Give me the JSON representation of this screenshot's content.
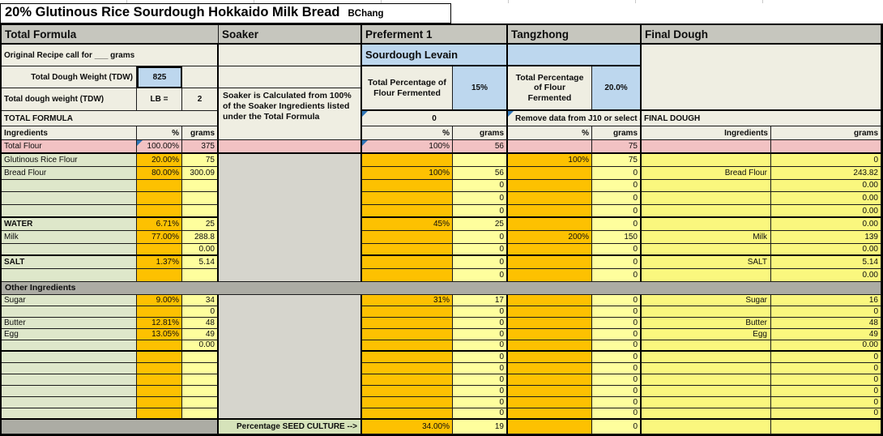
{
  "title": "20% Glutinous Rice Sourdough Hokkaido Milk Bread",
  "author": "BChang",
  "colors": {
    "orange_input": "#FDC101",
    "pale_yellow": "#FEFE9D",
    "final_dough_yellow": "#FAF77E",
    "pink_total_flour": "#F2C2C3",
    "label_green": "#DEE7CA",
    "seed_green": "#D6E3BA",
    "header_gray": "#C6C6BE",
    "band_gray": "#ACACA4",
    "soaker_gray": "#D6D5CD",
    "beige": "#EFEEE2",
    "blue_accent": "#BDD7EE",
    "comment_flag_blue": "#2E75B6"
  },
  "section_headers": [
    "Total Formula",
    "Soaker",
    "Preferment 1",
    "Tangzhong",
    "Final Dough"
  ],
  "total_formula": {
    "original_recipe_label": "Original Recipe call for ___ grams",
    "tdw_label": "Total Dough Weight (TDW)",
    "tdw_value": "825",
    "tdw_label2": "Total dough weight (TDW)",
    "lb_label": "LB  =",
    "lb_value": "2",
    "section_label": "TOTAL FORMULA",
    "col_headers": {
      "ingredients": "Ingredients",
      "pct": "%",
      "grams": "grams"
    }
  },
  "soaker": {
    "note": "Soaker is Calculated from 100% of the Soaker Ingredients listed under the Total Formula",
    "seed_culture_label": "Percentage SEED CULTURE  -->"
  },
  "preferment": {
    "subtitle": "Sourdough Levain",
    "pct_fermented_label": "Total Percentage of Flour Fermented",
    "pct_fermented_value": "15%",
    "flag_value": "0",
    "col_headers": {
      "pct": "%",
      "grams": "grams"
    },
    "seed_pct": "34.00%",
    "seed_grams": "19"
  },
  "tangzhong": {
    "pct_fermented_label": "Total Percentage of Flour Fermented",
    "pct_fermented_value": "20.0%",
    "note": "Remove data from J10 or select an",
    "col_headers": {
      "pct": "%",
      "grams": "grams"
    },
    "seed_pct": "",
    "seed_grams": "0"
  },
  "final_dough": {
    "section_label": "FINAL DOUGH",
    "col_headers": {
      "ingredients": "Ingredients",
      "grams": "grams"
    }
  },
  "total_flour_row": {
    "label": "Total Flour",
    "tf_pct": "100.00%",
    "tf_grams": "375",
    "pref_pct": "100%",
    "pref_grams": "56",
    "tang_pct": "",
    "tang_grams": "75",
    "fd_label": "",
    "fd_grams": ""
  },
  "other_ingredients_label": "Other Ingredients",
  "upper_rows": [
    {
      "label": "Glutinous Rice Flour",
      "bold": false,
      "tf_pct": "20.00%",
      "tf_grams": "75",
      "pref_pct": "",
      "pref_grams": "",
      "tang_pct": "100%",
      "tang_grams": "75",
      "fd_label": "",
      "fd_grams": "0"
    },
    {
      "label": "Bread Flour",
      "bold": false,
      "tf_pct": "80.00%",
      "tf_grams": "300.09",
      "pref_pct": "100%",
      "pref_grams": "56",
      "tang_pct": "",
      "tang_grams": "0",
      "fd_label": "Bread Flour",
      "fd_grams": "243.82"
    },
    {
      "label": "",
      "bold": false,
      "tf_pct": "",
      "tf_grams": "",
      "pref_pct": "",
      "pref_grams": "0",
      "tang_pct": "",
      "tang_grams": "0",
      "fd_label": "",
      "fd_grams": "0.00"
    },
    {
      "label": "",
      "bold": false,
      "tf_pct": "",
      "tf_grams": "",
      "pref_pct": "",
      "pref_grams": "0",
      "tang_pct": "",
      "tang_grams": "0",
      "fd_label": "",
      "fd_grams": "0.00"
    },
    {
      "label": "",
      "bold": false,
      "tf_pct": "",
      "tf_grams": "",
      "pref_pct": "",
      "pref_grams": "0",
      "tang_pct": "",
      "tang_grams": "0",
      "fd_label": "",
      "fd_grams": "0.00"
    },
    {
      "label": "WATER",
      "bold": true,
      "tf_pct": "6.71%",
      "tf_grams": "25",
      "pref_pct": "45%",
      "pref_grams": "25",
      "tang_pct": "",
      "tang_grams": "0",
      "fd_label": "",
      "fd_grams": "0.00"
    },
    {
      "label": "Milk",
      "bold": false,
      "tf_pct": "77.00%",
      "tf_grams": "288.8",
      "pref_pct": "",
      "pref_grams": "0",
      "tang_pct": "200%",
      "tang_grams": "150",
      "fd_label": "Milk",
      "fd_grams": "139"
    },
    {
      "label": "",
      "bold": false,
      "tf_pct": "",
      "tf_grams": "0.00",
      "pref_pct": "",
      "pref_grams": "0",
      "tang_pct": "",
      "tang_grams": "0",
      "fd_label": "",
      "fd_grams": "0.00"
    },
    {
      "label": "SALT",
      "bold": true,
      "tf_pct": "1.37%",
      "tf_grams": "5.14",
      "pref_pct": "",
      "pref_grams": "0",
      "tang_pct": "",
      "tang_grams": "0",
      "fd_label": "SALT",
      "fd_grams": "5.14"
    },
    {
      "label": "",
      "bold": false,
      "tf_pct": "",
      "tf_grams": "",
      "pref_pct": "",
      "pref_grams": "0",
      "tang_pct": "",
      "tang_grams": "0",
      "fd_label": "",
      "fd_grams": "0.00"
    }
  ],
  "lower_rows": [
    {
      "label": "Sugar",
      "bold": false,
      "tf_pct": "9.00%",
      "tf_grams": "34",
      "pref_pct": "31%",
      "pref_grams": "17",
      "tang_pct": "",
      "tang_grams": "0",
      "fd_label": "Sugar",
      "fd_grams": "16"
    },
    {
      "label": "",
      "bold": false,
      "tf_pct": "",
      "tf_grams": "0",
      "pref_pct": "",
      "pref_grams": "0",
      "tang_pct": "",
      "tang_grams": "0",
      "fd_label": "",
      "fd_grams": "0"
    },
    {
      "label": "Butter",
      "bold": false,
      "tf_pct": "12.81%",
      "tf_grams": "48",
      "pref_pct": "",
      "pref_grams": "0",
      "tang_pct": "",
      "tang_grams": "0",
      "fd_label": "Butter",
      "fd_grams": "48"
    },
    {
      "label": "Egg",
      "bold": false,
      "tf_pct": "13.05%",
      "tf_grams": "49",
      "pref_pct": "",
      "pref_grams": "0",
      "tang_pct": "",
      "tang_grams": "0",
      "fd_label": "Egg",
      "fd_grams": "49"
    },
    {
      "label": "",
      "bold": false,
      "tf_pct": "",
      "tf_grams": "0.00",
      "pref_pct": "",
      "pref_grams": "0",
      "tang_pct": "",
      "tang_grams": "0",
      "fd_label": "",
      "fd_grams": "0.00"
    },
    {
      "label": "",
      "bold": false,
      "tf_pct": "",
      "tf_grams": "",
      "pref_pct": "",
      "pref_grams": "0",
      "tang_pct": "",
      "tang_grams": "0",
      "fd_label": "",
      "fd_grams": "0"
    },
    {
      "label": "",
      "bold": false,
      "tf_pct": "",
      "tf_grams": "",
      "pref_pct": "",
      "pref_grams": "0",
      "tang_pct": "",
      "tang_grams": "0",
      "fd_label": "",
      "fd_grams": "0"
    },
    {
      "label": "",
      "bold": false,
      "tf_pct": "",
      "tf_grams": "",
      "pref_pct": "",
      "pref_grams": "0",
      "tang_pct": "",
      "tang_grams": "0",
      "fd_label": "",
      "fd_grams": "0"
    },
    {
      "label": "",
      "bold": false,
      "tf_pct": "",
      "tf_grams": "",
      "pref_pct": "",
      "pref_grams": "0",
      "tang_pct": "",
      "tang_grams": "0",
      "fd_label": "",
      "fd_grams": "0"
    },
    {
      "label": "",
      "bold": false,
      "tf_pct": "",
      "tf_grams": "",
      "pref_pct": "",
      "pref_grams": "0",
      "tang_pct": "",
      "tang_grams": "0",
      "fd_label": "",
      "fd_grams": "0"
    },
    {
      "label": "",
      "bold": false,
      "tf_pct": "",
      "tf_grams": "",
      "pref_pct": "",
      "pref_grams": "0",
      "tang_pct": "",
      "tang_grams": "0",
      "fd_label": "",
      "fd_grams": "0"
    }
  ]
}
